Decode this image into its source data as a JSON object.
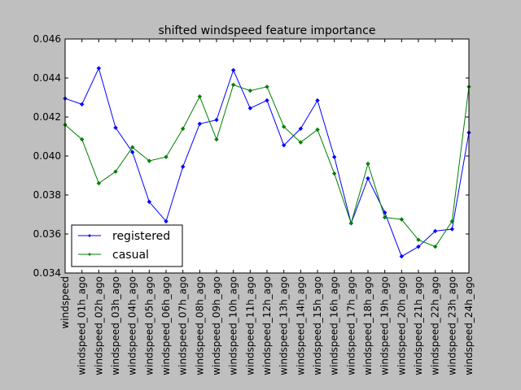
{
  "chart_data": {
    "type": "line",
    "title": "shifted windspeed feature importance",
    "xlabel": "",
    "ylabel": "",
    "categories": [
      "windspeed",
      "windspeed_01h_ago",
      "windspeed_02h_ago",
      "windspeed_03h_ago",
      "windspeed_04h_ago",
      "windspeed_05h_ago",
      "windspeed_06h_ago",
      "windspeed_07h_ago",
      "windspeed_08h_ago",
      "windspeed_09h_ago",
      "windspeed_10h_ago",
      "windspeed_11h_ago",
      "windspeed_12h_ago",
      "windspeed_13h_ago",
      "windspeed_14h_ago",
      "windspeed_15h_ago",
      "windspeed_16h_ago",
      "windspeed_17h_ago",
      "windspeed_18h_ago",
      "windspeed_19h_ago",
      "windspeed_20h_ago",
      "windspeed_21h_ago",
      "windspeed_22h_ago",
      "windspeed_23h_ago",
      "windspeed_24h_ago"
    ],
    "ylim": [
      0.034,
      0.046
    ],
    "yticks": [
      "0.034",
      "0.036",
      "0.038",
      "0.040",
      "0.042",
      "0.044",
      "0.046"
    ],
    "legend_position": "bottom-left",
    "series": [
      {
        "name": "registered",
        "color": "#0000ff",
        "values": [
          0.04295,
          0.04265,
          0.0445,
          0.04145,
          0.0402,
          0.03765,
          0.03665,
          0.03945,
          0.04165,
          0.04185,
          0.0444,
          0.04245,
          0.04285,
          0.04055,
          0.0414,
          0.04285,
          0.03995,
          0.03655,
          0.03885,
          0.0371,
          0.03485,
          0.03535,
          0.03615,
          0.03625,
          0.0412
        ]
      },
      {
        "name": "casual",
        "color": "#008000",
        "values": [
          0.0416,
          0.04085,
          0.0386,
          0.0392,
          0.04045,
          0.03975,
          0.03995,
          0.0414,
          0.04305,
          0.04085,
          0.04365,
          0.04335,
          0.04355,
          0.0415,
          0.0407,
          0.04135,
          0.0391,
          0.03655,
          0.0396,
          0.03685,
          0.03675,
          0.0357,
          0.03535,
          0.03665,
          0.04355
        ]
      }
    ]
  }
}
